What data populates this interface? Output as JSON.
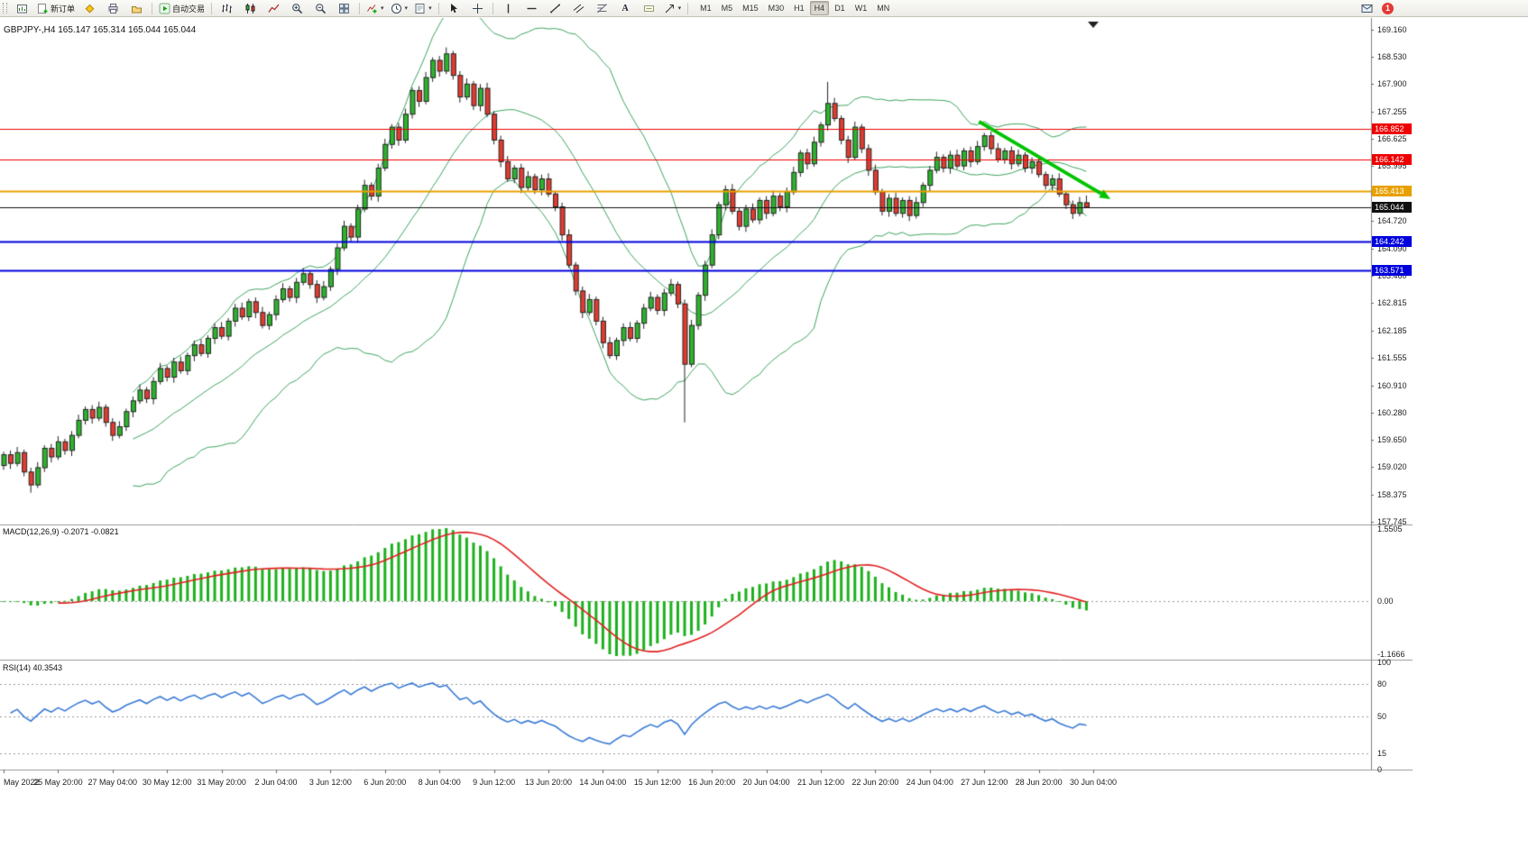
{
  "toolbar": {
    "new_order": "新订单",
    "autotrading": "自动交易",
    "timeframes": [
      "M1",
      "M5",
      "M15",
      "M30",
      "H1",
      "H4",
      "D1",
      "W1",
      "MN"
    ],
    "active_timeframe": "H4",
    "badge_count": "1"
  },
  "chart": {
    "title": "GBPJPY-,H4 165.147 165.314 165.044 165.044"
  },
  "chart_data": {
    "type": "candlestick",
    "symbol": "GBPJPY-",
    "timeframe": "H4",
    "price_axis": {
      "max": 169.16,
      "min": 157.745
    },
    "price_scale_labels": [
      "169.160",
      "168.530",
      "167.900",
      "167.255",
      "166.625",
      "165.995",
      "165.365",
      "164.720",
      "164.090",
      "163.460",
      "162.815",
      "162.185",
      "161.555",
      "160.910",
      "160.280",
      "159.650",
      "159.020",
      "158.375",
      "157.745"
    ],
    "first_open": 159.05,
    "closes": [
      159.3,
      159.1,
      159.35,
      158.9,
      158.6,
      159.0,
      159.45,
      159.25,
      159.6,
      159.4,
      159.75,
      160.1,
      160.35,
      160.15,
      160.4,
      160.05,
      159.75,
      159.95,
      160.3,
      160.55,
      160.8,
      160.6,
      161.0,
      161.3,
      161.1,
      161.45,
      161.25,
      161.6,
      161.85,
      161.65,
      162.0,
      162.25,
      162.05,
      162.4,
      162.7,
      162.5,
      162.85,
      162.6,
      162.3,
      162.55,
      162.9,
      163.15,
      162.95,
      163.3,
      163.5,
      163.25,
      162.95,
      163.2,
      163.6,
      164.1,
      164.6,
      164.35,
      165.0,
      165.55,
      165.3,
      165.95,
      166.5,
      166.9,
      166.6,
      167.2,
      167.75,
      167.5,
      168.05,
      168.45,
      168.2,
      168.6,
      168.1,
      167.6,
      167.9,
      167.4,
      167.8,
      167.2,
      166.6,
      166.1,
      165.7,
      165.95,
      165.5,
      165.75,
      165.45,
      165.7,
      165.35,
      165.05,
      164.4,
      163.7,
      163.1,
      162.6,
      162.9,
      162.4,
      161.9,
      161.6,
      161.95,
      162.25,
      162.0,
      162.35,
      162.7,
      162.95,
      162.65,
      163.05,
      163.25,
      162.8,
      161.4,
      162.3,
      163.0,
      163.7,
      164.4,
      165.1,
      165.45,
      164.95,
      164.6,
      165.0,
      164.75,
      165.2,
      164.9,
      165.3,
      165.05,
      165.4,
      165.85,
      166.3,
      166.05,
      166.55,
      166.95,
      167.45,
      167.1,
      166.6,
      166.2,
      166.9,
      166.4,
      165.9,
      165.4,
      164.95,
      165.25,
      164.9,
      165.2,
      164.85,
      165.15,
      165.55,
      165.9,
      166.2,
      165.95,
      166.25,
      166.0,
      166.35,
      166.1,
      166.45,
      166.7,
      166.4,
      166.15,
      166.35,
      166.05,
      166.25,
      165.95,
      166.1,
      165.8,
      165.55,
      165.7,
      165.35,
      165.1,
      164.9,
      165.15,
      165.044
    ],
    "wick_overrides": {
      "4": {
        "low": 158.42
      },
      "65": {
        "high": 168.75
      },
      "100": {
        "low": 160.05
      },
      "121": {
        "high": 167.95
      }
    },
    "ohlc_overrides": {
      "159": [
        165.147,
        165.314,
        165.044,
        165.044
      ]
    },
    "hlines": [
      {
        "price": 166.852,
        "label": "166.852",
        "color": "#ee0000",
        "width": 1
      },
      {
        "price": 166.142,
        "label": "166.142",
        "color": "#ee0000",
        "width": 1
      },
      {
        "price": 165.413,
        "label": "165.413",
        "color": "#e8a000",
        "width": 2
      },
      {
        "price": 165.044,
        "label": "165.044",
        "color": "#111111",
        "width": 1
      },
      {
        "price": 164.242,
        "label": "164.242",
        "color": "#0000dd",
        "width": 2
      },
      {
        "price": 163.571,
        "label": "163.571",
        "color": "#0000dd",
        "width": 2
      }
    ],
    "bollinger": {
      "period": 20,
      "deviation": 2
    },
    "trend_arrow": {
      "x1_frac": 0.714,
      "y1_price": 167.03,
      "x2_frac": 0.81,
      "y2_price": 165.23,
      "width": 4
    },
    "time_labels": [
      "May 2022",
      "25 May 20:00",
      "27 May 04:00",
      "30 May 12:00",
      "31 May 20:00",
      "2 Jun 04:00",
      "3 Jun 12:00",
      "6 Jun 20:00",
      "8 Jun 04:00",
      "9 Jun 12:00",
      "13 Jun 20:00",
      "14 Jun 04:00",
      "15 Jun 12:00",
      "16 Jun 20:00",
      "20 Jun 04:00",
      "21 Jun 12:00",
      "22 Jun 20:00",
      "24 Jun 04:00",
      "27 Jun 12:00",
      "28 Jun 20:00",
      "30 Jun 04:00"
    ],
    "label_every": 8,
    "macd": {
      "label": "MACD(12,26,9) -0.2071 -0.0821",
      "fast": 12,
      "slow": 26,
      "signal": 9,
      "scale_top": "1.5505",
      "scale_zero": "0.00",
      "scale_bottom": "-1.1666"
    },
    "rsi": {
      "label": "RSI(14) 40.3543",
      "period": 14,
      "levels": [
        80,
        50,
        15
      ],
      "scale_labels": [
        "100",
        "80",
        "50",
        "15",
        "0"
      ]
    },
    "colors": {
      "bull": "#2db32d",
      "bear": "#e13b30",
      "candle_border": "#222222",
      "bollinger": "#3da35f",
      "macd_hist": "#1db11d",
      "macd_signal": "#e02020",
      "rsi_line": "#3a7bd5",
      "arrow": "#00c300",
      "grid": "#9a9a9a"
    }
  }
}
